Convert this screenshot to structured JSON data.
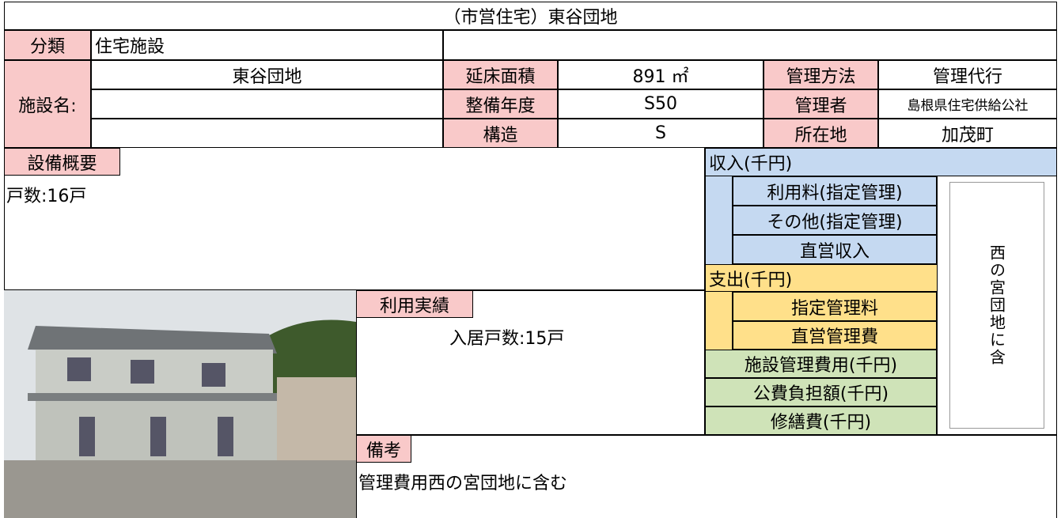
{
  "header": {
    "title": "（市営住宅）東谷団地"
  },
  "classification": {
    "label": "分類",
    "value": "住宅施設"
  },
  "facility": {
    "label": "施設名:",
    "names": [
      "東谷団地"
    ],
    "fields": [
      {
        "label": "延床面積",
        "value": "891 ㎡",
        "label2": "管理方法",
        "value2": "管理代行"
      },
      {
        "label": "整備年度",
        "value": "S50",
        "label2": "管理者",
        "value2": "島根県住宅供給公社"
      },
      {
        "label": "構造",
        "value": "S",
        "label2": "所在地",
        "value2": "加茂町"
      }
    ]
  },
  "equipment": {
    "label": "設備概要",
    "text": "戸数:16戸"
  },
  "usage": {
    "label": "利用実績",
    "text": "入居戸数:15戸"
  },
  "remarks": {
    "label": "備考",
    "text": "管理費用西の宮団地に含む"
  },
  "finance": {
    "income": {
      "label": "収入(千円)",
      "items": [
        "利用料(指定管理)",
        "その他(指定管理)",
        "直営収入"
      ]
    },
    "expense": {
      "label": "支出(千円)",
      "items": [
        "指定管理料",
        "直営管理費"
      ]
    },
    "other": [
      "施設管理費用(千円)",
      "公費負担額(千円)",
      "修繕費(千円)"
    ],
    "note": "西の宮団地に含"
  }
}
